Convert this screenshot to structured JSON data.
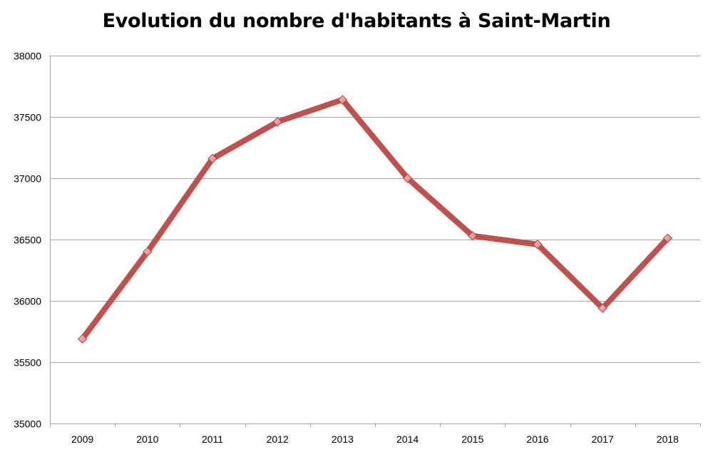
{
  "chart_data": {
    "type": "line",
    "title": "Evolution du nombre d'habitants à Saint-Martin",
    "xlabel": "",
    "ylabel": "",
    "categories": [
      "2009",
      "2010",
      "2011",
      "2012",
      "2013",
      "2014",
      "2015",
      "2016",
      "2017",
      "2018"
    ],
    "series": [
      {
        "values": [
          35690,
          36400,
          37160,
          37460,
          37640,
          37000,
          36530,
          36460,
          35940,
          36510
        ],
        "color": "#c0504d"
      }
    ],
    "ylim": [
      35000,
      38000
    ],
    "yticks": [
      35000,
      35500,
      36000,
      36500,
      37000,
      37500,
      38000
    ],
    "grid": true,
    "legend": "none",
    "marker": "diamond"
  }
}
